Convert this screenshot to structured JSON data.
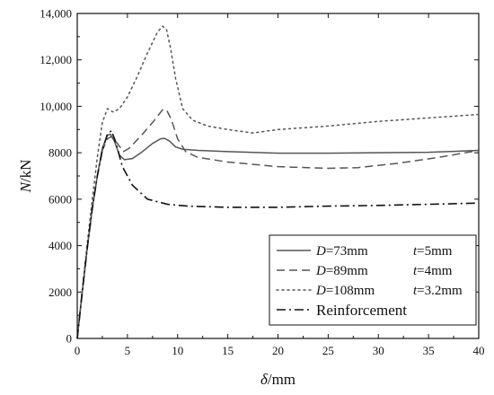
{
  "chart_data": {
    "type": "line",
    "xlabel": {
      "var": "δ",
      "unit": "/mm"
    },
    "ylabel": {
      "var": "N",
      "unit": "/kN"
    },
    "xlim": [
      0,
      40
    ],
    "ylim": [
      0,
      14000
    ],
    "x_ticks": [
      0,
      5,
      10,
      15,
      20,
      25,
      30,
      35,
      40
    ],
    "x_tick_labels": [
      "0",
      "5",
      "10",
      "15",
      "20",
      "25",
      "30",
      "35",
      "40"
    ],
    "y_ticks": [
      0,
      2000,
      4000,
      6000,
      8000,
      10000,
      12000,
      14000
    ],
    "y_tick_labels": [
      "0",
      "2000",
      "4000",
      "6000",
      "8000",
      "10,000",
      "12,000",
      "14,000"
    ],
    "grid": false,
    "legend_position": "bottom-right",
    "series": [
      {
        "name": "D=73mm  t=5mm",
        "legend": {
          "D_label": "D",
          "D_value": "=73mm",
          "t_label": "t",
          "t_value": "=5mm"
        },
        "style": "solid",
        "color": "#555555",
        "points": [
          [
            0,
            0
          ],
          [
            0.5,
            2000
          ],
          [
            1,
            3900
          ],
          [
            1.5,
            5600
          ],
          [
            2,
            7000
          ],
          [
            2.5,
            8200
          ],
          [
            3,
            8750
          ],
          [
            3.3,
            8800
          ],
          [
            3.7,
            8500
          ],
          [
            4.2,
            7900
          ],
          [
            4.7,
            7700
          ],
          [
            5.5,
            7750
          ],
          [
            6.5,
            8050
          ],
          [
            7.5,
            8400
          ],
          [
            8.3,
            8600
          ],
          [
            8.7,
            8620
          ],
          [
            9.2,
            8500
          ],
          [
            9.8,
            8250
          ],
          [
            10.5,
            8150
          ],
          [
            12,
            8100
          ],
          [
            15,
            8050
          ],
          [
            20,
            7980
          ],
          [
            25,
            7980
          ],
          [
            30,
            8000
          ],
          [
            35,
            8020
          ],
          [
            40,
            8100
          ]
        ]
      },
      {
        "name": "D=89mm  t=4mm",
        "legend": {
          "D_label": "D",
          "D_value": "=89mm",
          "t_label": "t",
          "t_value": "=4mm"
        },
        "style": "dashed",
        "color": "#555555",
        "points": [
          [
            0,
            0
          ],
          [
            0.5,
            2000
          ],
          [
            1,
            3900
          ],
          [
            1.5,
            5600
          ],
          [
            2,
            7000
          ],
          [
            2.5,
            8100
          ],
          [
            3,
            8600
          ],
          [
            3.4,
            8700
          ],
          [
            4,
            8400
          ],
          [
            4.6,
            8050
          ],
          [
            5.2,
            8200
          ],
          [
            6.5,
            8800
          ],
          [
            7.5,
            9300
          ],
          [
            8.5,
            9850
          ],
          [
            8.9,
            9850
          ],
          [
            9.4,
            9400
          ],
          [
            10,
            8600
          ],
          [
            10.8,
            8050
          ],
          [
            12,
            7800
          ],
          [
            15,
            7600
          ],
          [
            20,
            7400
          ],
          [
            25,
            7330
          ],
          [
            28,
            7360
          ],
          [
            32,
            7550
          ],
          [
            36,
            7800
          ],
          [
            40,
            8100
          ]
        ]
      },
      {
        "name": "D=108mm  t=3.2mm",
        "legend": {
          "D_label": "D",
          "D_value": "=108mm",
          "t_label": "t",
          "t_value": "=3.2mm"
        },
        "style": "dotted",
        "color": "#555555",
        "points": [
          [
            0,
            0
          ],
          [
            0.5,
            2100
          ],
          [
            1,
            4100
          ],
          [
            1.5,
            6000
          ],
          [
            2,
            7800
          ],
          [
            2.5,
            9300
          ],
          [
            3,
            9900
          ],
          [
            3.6,
            9750
          ],
          [
            4.2,
            9900
          ],
          [
            5,
            10400
          ],
          [
            6,
            11300
          ],
          [
            7,
            12300
          ],
          [
            8,
            13200
          ],
          [
            8.5,
            13450
          ],
          [
            8.9,
            13300
          ],
          [
            9.3,
            12500
          ],
          [
            9.8,
            11200
          ],
          [
            10.5,
            9900
          ],
          [
            11.5,
            9400
          ],
          [
            13,
            9150
          ],
          [
            15,
            9000
          ],
          [
            17.5,
            8850
          ],
          [
            20,
            9000
          ],
          [
            25,
            9150
          ],
          [
            30,
            9350
          ],
          [
            35,
            9500
          ],
          [
            40,
            9650
          ]
        ]
      },
      {
        "name": "Reinforcement",
        "legend": {
          "label": "Reinforcement"
        },
        "style": "dashdot",
        "color": "#111111",
        "points": [
          [
            0,
            0
          ],
          [
            0.5,
            2000
          ],
          [
            1,
            3900
          ],
          [
            1.5,
            5600
          ],
          [
            2,
            7000
          ],
          [
            2.5,
            8100
          ],
          [
            3,
            8800
          ],
          [
            3.4,
            8950
          ],
          [
            3.8,
            8500
          ],
          [
            4.5,
            7400
          ],
          [
            5.5,
            6600
          ],
          [
            7,
            6000
          ],
          [
            9,
            5780
          ],
          [
            11,
            5700
          ],
          [
            15,
            5650
          ],
          [
            20,
            5650
          ],
          [
            25,
            5700
          ],
          [
            30,
            5730
          ],
          [
            35,
            5780
          ],
          [
            40,
            5830
          ]
        ]
      }
    ]
  }
}
